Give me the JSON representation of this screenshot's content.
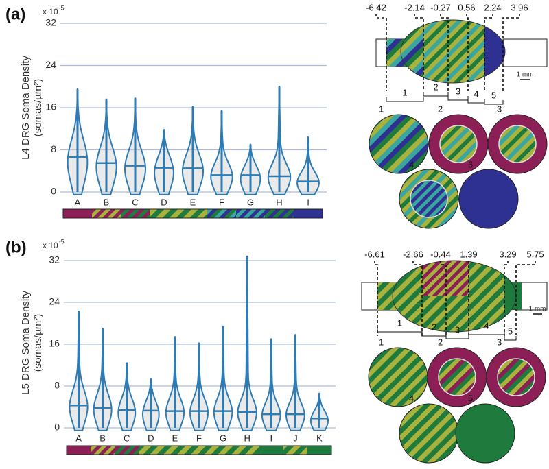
{
  "chart_data": [
    {
      "type": "violin",
      "panel_label": "(a)",
      "y_label": [
        "L4 DRG Soma Density",
        "(somas/µm²)"
      ],
      "multiplier": "x 10",
      "multiplier_exponent": "-5",
      "categories": [
        "A",
        "B",
        "C",
        "D",
        "E",
        "F",
        "G",
        "H",
        "I"
      ],
      "medians": [
        6.6,
        5.5,
        5.0,
        4.6,
        4.5,
        3.2,
        3.2,
        3.0,
        2.0
      ],
      "maxima": [
        19.5,
        17.6,
        17.8,
        11.8,
        16.2,
        15.4,
        9.0,
        20.0,
        10.4
      ],
      "color": "#2e7cb5",
      "ylim": [
        0,
        32
      ],
      "yticks": [
        0,
        8,
        16,
        24,
        32
      ],
      "grid": true
    },
    {
      "type": "violin",
      "panel_label": "(b)",
      "y_label": [
        "L5 DRG Soma Density",
        "(somas/µm²)"
      ],
      "multiplier": "x 10",
      "multiplier_exponent": "-5",
      "categories": [
        "A",
        "B",
        "C",
        "D",
        "E",
        "F",
        "G",
        "H",
        "I",
        "J",
        "K"
      ],
      "medians": [
        4.3,
        3.8,
        3.4,
        3.3,
        3.2,
        3.2,
        3.2,
        3.0,
        2.6,
        2.6,
        1.8
      ],
      "maxima": [
        22.3,
        19.0,
        12.4,
        9.3,
        17.4,
        16.2,
        19.4,
        32.8,
        17.0,
        17.8,
        6.6
      ],
      "color": "#2e7cb5",
      "ylim": [
        0,
        33
      ],
      "yticks": [
        0,
        8,
        16,
        24,
        32
      ],
      "grid": true
    }
  ],
  "diagrams": [
    {
      "positions": [
        -6.42,
        -2.14,
        -0.27,
        0.56,
        2.24,
        3.96
      ],
      "sections": [
        "1",
        "2",
        "3",
        "4",
        "5"
      ],
      "scale": "1 mm"
    },
    {
      "positions": [
        -6.61,
        -2.66,
        -0.44,
        1.39,
        3.29,
        5.75
      ],
      "sections": [
        "1",
        "2",
        "3",
        "4",
        "5"
      ],
      "scale": "1 mm"
    }
  ]
}
